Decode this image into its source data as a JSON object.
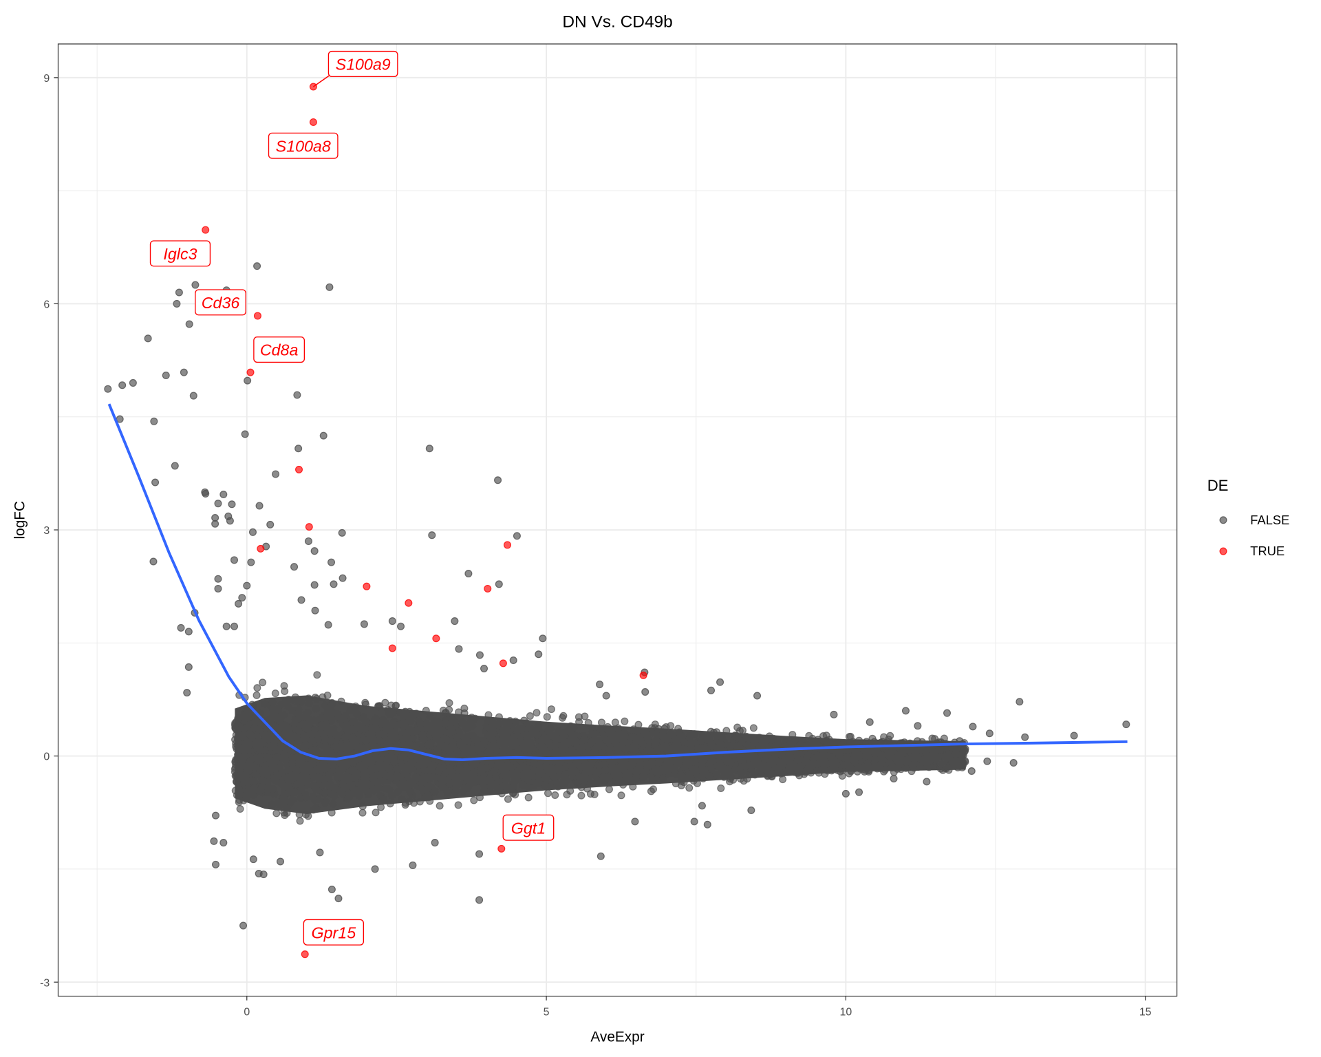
{
  "chart_data": {
    "type": "scatter",
    "title": "DN Vs. CD49b",
    "xlabel": "AveExpr",
    "ylabel": "logFC",
    "xlim": [
      -2.5,
      15.5
    ],
    "ylim": [
      -3.2,
      9.5
    ],
    "x_ticks": [
      0,
      5,
      10,
      15
    ],
    "y_ticks": [
      -3,
      0,
      3,
      6,
      9
    ],
    "grid": true,
    "legend": {
      "title": "DE",
      "position": "right",
      "entries": [
        {
          "label": "FALSE",
          "color": "#4d4d4d"
        },
        {
          "label": "TRUE",
          "color": "#ff0000"
        }
      ]
    },
    "colors": {
      "false": "#4d4d4d",
      "true": "#ff0000",
      "trend": "#3366ff"
    },
    "series": [
      {
        "name": "TRUE",
        "points": [
          [
            1.11,
            8.88
          ],
          [
            1.11,
            8.41
          ],
          [
            -0.69,
            6.98
          ],
          [
            0.18,
            5.84
          ],
          [
            0.06,
            5.09
          ],
          [
            0.87,
            3.8
          ],
          [
            1.04,
            3.04
          ],
          [
            0.23,
            2.75
          ],
          [
            2.0,
            2.25
          ],
          [
            2.7,
            2.03
          ],
          [
            3.16,
            1.56
          ],
          [
            2.43,
            1.43
          ],
          [
            4.02,
            2.22
          ],
          [
            4.35,
            2.8
          ],
          [
            4.28,
            1.23
          ],
          [
            6.62,
            1.07
          ],
          [
            4.25,
            -1.23
          ],
          [
            0.97,
            -2.63
          ]
        ]
      },
      {
        "name": "FALSE",
        "points": [
          [
            -2.32,
            4.87
          ],
          [
            -2.08,
            4.92
          ],
          [
            -1.9,
            4.95
          ],
          [
            -2.12,
            4.47
          ],
          [
            -1.65,
            5.54
          ],
          [
            -1.55,
            4.44
          ],
          [
            -1.53,
            3.63
          ],
          [
            -1.56,
            2.58
          ],
          [
            -1.35,
            5.05
          ],
          [
            -1.2,
            3.85
          ],
          [
            -1.13,
            6.15
          ],
          [
            -1.17,
            6.0
          ],
          [
            -1.05,
            5.09
          ],
          [
            -0.96,
            5.73
          ],
          [
            -0.89,
            4.78
          ],
          [
            -0.86,
            6.25
          ],
          [
            -1.1,
            1.7
          ],
          [
            -0.97,
            1.65
          ],
          [
            -0.87,
            1.9
          ],
          [
            -0.97,
            1.18
          ],
          [
            -1.0,
            0.84
          ],
          [
            -0.7,
            3.5
          ],
          [
            -0.69,
            3.48
          ],
          [
            -0.39,
            3.47
          ],
          [
            -0.48,
            3.35
          ],
          [
            -0.25,
            3.34
          ],
          [
            -0.53,
            3.16
          ],
          [
            -0.31,
            3.18
          ],
          [
            -0.53,
            3.08
          ],
          [
            -0.28,
            3.12
          ],
          [
            -0.48,
            2.35
          ],
          [
            -0.48,
            2.22
          ],
          [
            -0.21,
            2.6
          ],
          [
            0.17,
            6.5
          ],
          [
            1.38,
            6.22
          ],
          [
            -0.34,
            6.18
          ],
          [
            0.01,
            4.98
          ],
          [
            0.84,
            4.79
          ],
          [
            -0.03,
            4.27
          ],
          [
            0.86,
            4.08
          ],
          [
            1.28,
            4.25
          ],
          [
            3.05,
            4.08
          ],
          [
            0.48,
            3.74
          ],
          [
            0.21,
            3.32
          ],
          [
            0.39,
            3.07
          ],
          [
            0.1,
            2.97
          ],
          [
            1.59,
            2.96
          ],
          [
            3.09,
            2.93
          ],
          [
            1.03,
            2.85
          ],
          [
            0.32,
            2.78
          ],
          [
            1.13,
            2.72
          ],
          [
            0.07,
            2.57
          ],
          [
            1.41,
            2.57
          ],
          [
            0.79,
            2.51
          ],
          [
            4.19,
            3.66
          ],
          [
            4.51,
            2.92
          ],
          [
            3.7,
            2.42
          ],
          [
            4.21,
            2.28
          ],
          [
            1.6,
            2.36
          ],
          [
            1.45,
            2.28
          ],
          [
            1.13,
            2.27
          ],
          [
            0.0,
            2.26
          ],
          [
            -0.08,
            2.1
          ],
          [
            -0.14,
            2.02
          ],
          [
            3.47,
            1.79
          ],
          [
            -0.34,
            1.72
          ],
          [
            -0.21,
            1.72
          ],
          [
            0.91,
            2.07
          ],
          [
            1.14,
            1.93
          ],
          [
            1.36,
            1.74
          ],
          [
            1.96,
            1.75
          ],
          [
            2.57,
            1.72
          ],
          [
            2.43,
            1.79
          ],
          [
            3.54,
            1.42
          ],
          [
            3.89,
            1.34
          ],
          [
            4.94,
            1.56
          ],
          [
            4.87,
            1.35
          ],
          [
            4.45,
            1.27
          ],
          [
            3.96,
            1.16
          ],
          [
            3.88,
            -1.3
          ],
          [
            5.91,
            -1.33
          ],
          [
            3.88,
            -1.91
          ],
          [
            1.42,
            -1.77
          ],
          [
            1.53,
            -1.89
          ],
          [
            -0.06,
            -2.25
          ],
          [
            -0.55,
            -1.13
          ],
          [
            -0.52,
            -1.44
          ],
          [
            -0.39,
            -1.15
          ],
          [
            0.11,
            -1.37
          ],
          [
            0.2,
            -1.56
          ],
          [
            0.28,
            -1.57
          ],
          [
            2.14,
            -1.5
          ],
          [
            2.77,
            -1.45
          ],
          [
            3.14,
            -1.15
          ],
          [
            1.22,
            -1.28
          ],
          [
            0.56,
            -1.4
          ],
          [
            -0.52,
            -0.79
          ],
          [
            14.68,
            0.42
          ],
          [
            13.81,
            0.27
          ],
          [
            12.9,
            0.72
          ],
          [
            12.99,
            0.25
          ],
          [
            12.8,
            -0.09
          ],
          [
            12.4,
            0.3
          ],
          [
            12.36,
            -0.07
          ],
          [
            11.35,
            -0.34
          ],
          [
            12.12,
            0.39
          ],
          [
            11.69,
            0.57
          ],
          [
            11.0,
            0.6
          ],
          [
            10.61,
            0.19
          ],
          [
            10.22,
            -0.48
          ],
          [
            10.0,
            -0.5
          ],
          [
            7.69,
            -0.91
          ],
          [
            7.47,
            -0.87
          ],
          [
            6.48,
            -0.87
          ],
          [
            7.6,
            -0.66
          ],
          [
            8.42,
            -0.72
          ],
          [
            7.9,
            0.98
          ],
          [
            7.75,
            0.87
          ],
          [
            8.52,
            0.8
          ],
          [
            6.64,
            1.11
          ],
          [
            5.89,
            0.95
          ],
          [
            6.0,
            0.8
          ],
          [
            6.65,
            0.85
          ],
          [
            11.9,
            0.2
          ],
          [
            11.6,
            -0.1
          ],
          [
            12.1,
            -0.2
          ],
          [
            11.2,
            0.4
          ],
          [
            10.8,
            -0.3
          ],
          [
            10.4,
            0.45
          ],
          [
            9.8,
            0.55
          ]
        ]
      }
    ],
    "dense_region": {
      "x": [
        -0.2,
        0.3,
        1.0,
        2.0,
        3.0,
        4.0,
        5.0,
        6.0,
        7.0,
        8.0,
        9.0,
        10.0,
        11.0,
        12.0
      ],
      "upper": [
        0.9,
        1.1,
        1.15,
        0.95,
        0.85,
        0.75,
        0.65,
        0.58,
        0.52,
        0.45,
        0.38,
        0.32,
        0.3,
        0.28
      ],
      "lower": [
        -0.8,
        -1.0,
        -1.1,
        -0.95,
        -0.85,
        -0.75,
        -0.65,
        -0.58,
        -0.52,
        -0.45,
        -0.38,
        -0.3,
        -0.28,
        -0.26
      ]
    },
    "trend_line": [
      [
        -2.3,
        4.67
      ],
      [
        -1.8,
        3.7
      ],
      [
        -1.3,
        2.7
      ],
      [
        -0.8,
        1.8
      ],
      [
        -0.3,
        1.05
      ],
      [
        0,
        0.7
      ],
      [
        0.3,
        0.45
      ],
      [
        0.6,
        0.2
      ],
      [
        0.9,
        0.05
      ],
      [
        1.2,
        -0.03
      ],
      [
        1.5,
        -0.04
      ],
      [
        1.8,
        0.0
      ],
      [
        2.1,
        0.07
      ],
      [
        2.4,
        0.1
      ],
      [
        2.7,
        0.08
      ],
      [
        3.0,
        0.02
      ],
      [
        3.3,
        -0.04
      ],
      [
        3.6,
        -0.05
      ],
      [
        4.0,
        -0.03
      ],
      [
        4.5,
        -0.02
      ],
      [
        5,
        -0.03
      ],
      [
        6,
        -0.02
      ],
      [
        7,
        0.0
      ],
      [
        8,
        0.05
      ],
      [
        9,
        0.09
      ],
      [
        10,
        0.12
      ],
      [
        11,
        0.14
      ],
      [
        12,
        0.16
      ],
      [
        13,
        0.17
      ],
      [
        14.7,
        0.19
      ]
    ],
    "annotations": [
      {
        "text": "S100a9",
        "x": 1.11,
        "y": 8.88
      },
      {
        "text": "S100a8",
        "x": 1.11,
        "y": 8.41
      },
      {
        "text": "Iglc3",
        "x": -0.69,
        "y": 6.98
      },
      {
        "text": "Cd36",
        "x": 0.18,
        "y": 5.84
      },
      {
        "text": "Cd8a",
        "x": 0.06,
        "y": 5.09
      },
      {
        "text": "Ggt1",
        "x": 4.25,
        "y": -1.23
      },
      {
        "text": "Gpr15",
        "x": 0.97,
        "y": -2.63
      }
    ]
  }
}
